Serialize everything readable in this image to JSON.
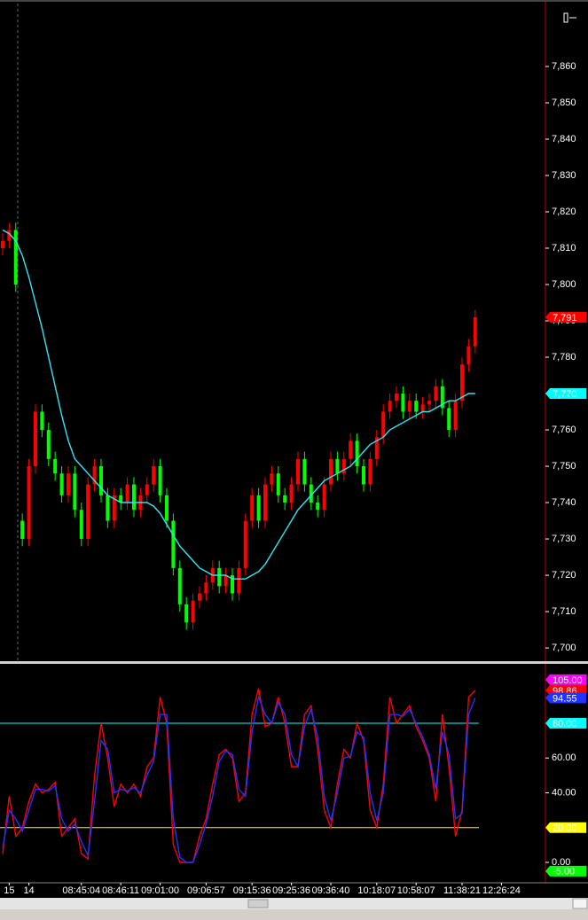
{
  "chart_data": [
    {
      "type": "candlestick",
      "xlim": [
        -0.4,
        82.7
      ],
      "ylim": [
        7696.6,
        7877.8
      ],
      "yticks": [
        {
          "value": 7700,
          "label": "7,700"
        },
        {
          "value": 7710,
          "label": "7,710"
        },
        {
          "value": 7720,
          "label": "7,720"
        },
        {
          "value": 7730,
          "label": "7,730"
        },
        {
          "value": 7740,
          "label": "7,740"
        },
        {
          "value": 7750,
          "label": "7,750"
        },
        {
          "value": 7760,
          "label": "7,760"
        },
        {
          "value": 7770,
          "label": "7,770"
        },
        {
          "value": 7780,
          "label": "7,780"
        },
        {
          "value": 7790,
          "label": "7,790"
        },
        {
          "value": 7800,
          "label": "7,800"
        },
        {
          "value": 7810,
          "label": "7,810"
        },
        {
          "value": 7820,
          "label": "7,820"
        },
        {
          "value": 7830,
          "label": "7,830"
        },
        {
          "value": 7840,
          "label": "7,840"
        },
        {
          "value": 7850,
          "label": "7,850"
        },
        {
          "value": 7860,
          "label": "7,860"
        }
      ],
      "up_color": "#ff0000",
      "down_color": "#00ff00",
      "open": [
        7810,
        7812,
        7815,
        7735,
        7730,
        7750,
        7765,
        7760,
        7752,
        7748,
        7742,
        7748,
        7738,
        7730,
        7745,
        7750,
        7742,
        7735,
        7742,
        7740,
        7745,
        7738,
        7742,
        7745,
        7750,
        7742,
        7735,
        7722,
        7712,
        7707,
        7713,
        7715,
        7718,
        7722,
        7717,
        7720,
        7715,
        7722,
        7735,
        7742,
        7735,
        7745,
        7748,
        7742,
        7740,
        7745,
        7752,
        7745,
        7740,
        7738,
        7745,
        7752,
        7748,
        7752,
        7757,
        7750,
        7745,
        7752,
        7758,
        7765,
        7768,
        7770,
        7765,
        7768,
        7765,
        7767,
        7768,
        7772,
        7766,
        7760,
        7768,
        7778,
        7783
      ],
      "high": [
        7814,
        7817,
        7817,
        7737,
        7752,
        7767,
        7767,
        7762,
        7754,
        7750,
        7750,
        7750,
        7740,
        7747,
        7752,
        7752,
        7744,
        7744,
        7744,
        7747,
        7747,
        7744,
        7747,
        7752,
        7752,
        7744,
        7737,
        7724,
        7714,
        7715,
        7717,
        7720,
        7724,
        7724,
        7722,
        7722,
        7724,
        7737,
        7744,
        7744,
        7747,
        7750,
        7750,
        7744,
        7747,
        7754,
        7754,
        7747,
        7742,
        7747,
        7754,
        7754,
        7754,
        7759,
        7759,
        7752,
        7754,
        7760,
        7767,
        7770,
        7772,
        7772,
        7770,
        7770,
        7769,
        7770,
        7774,
        7774,
        7768,
        7770,
        7780,
        7785,
        7793
      ],
      "low": [
        7808,
        7810,
        7798,
        7728,
        7728,
        7748,
        7758,
        7750,
        7746,
        7740,
        7740,
        7736,
        7728,
        7728,
        7743,
        7740,
        7733,
        7733,
        7738,
        7738,
        7736,
        7736,
        7740,
        7743,
        7740,
        7733,
        7720,
        7710,
        7705,
        7705,
        7711,
        7713,
        7716,
        7715,
        7715,
        7713,
        7713,
        7720,
        7733,
        7733,
        7733,
        7743,
        7740,
        7738,
        7738,
        7743,
        7743,
        7738,
        7736,
        7736,
        7743,
        7746,
        7746,
        7750,
        7748,
        7743,
        7743,
        7750,
        7756,
        7763,
        7766,
        7763,
        7763,
        7763,
        7763,
        7765,
        7766,
        7764,
        7758,
        7758,
        7766,
        7776,
        7781
      ],
      "close": [
        7812,
        7815,
        7800,
        7730,
        7750,
        7765,
        7760,
        7752,
        7748,
        7742,
        7748,
        7738,
        7730,
        7745,
        7750,
        7742,
        7735,
        7742,
        7740,
        7745,
        7738,
        7742,
        7745,
        7750,
        7742,
        7735,
        7722,
        7712,
        7707,
        7713,
        7715,
        7718,
        7722,
        7717,
        7720,
        7715,
        7722,
        7735,
        7742,
        7735,
        7745,
        7748,
        7742,
        7740,
        7745,
        7752,
        7745,
        7740,
        7738,
        7745,
        7752,
        7748,
        7752,
        7757,
        7750,
        7745,
        7752,
        7758,
        7765,
        7768,
        7770,
        7765,
        7768,
        7765,
        7767,
        7768,
        7772,
        7766,
        7760,
        7768,
        7778,
        7783,
        7791
      ],
      "series": [
        {
          "color": "#33e6f0",
          "values": [
            7815,
            7814,
            7812,
            7808,
            7802,
            7795,
            7788,
            7780,
            7772,
            7764,
            7757,
            7752,
            7750,
            7748,
            7746,
            7744,
            7742,
            7741,
            7740,
            7740,
            7740,
            7740,
            7740,
            7739,
            7737,
            7734,
            7731,
            7728,
            7726,
            7724,
            7722,
            7721,
            7720,
            7720,
            7720,
            7719,
            7719,
            7719,
            7720,
            7721,
            7723,
            7726,
            7729,
            7732,
            7735,
            7738,
            7740,
            7742,
            7744,
            7746,
            7747,
            7748,
            7749,
            7750,
            7752,
            7754,
            7756,
            7757,
            7758,
            7760,
            7761,
            7762,
            7763,
            7764,
            7765,
            7765,
            7766,
            7767,
            7768,
            7768,
            7769,
            7770,
            7770
          ]
        }
      ],
      "markers": [
        {
          "value": 7791,
          "label": "7,791",
          "color": "#ff0000"
        },
        {
          "value": 7770,
          "label": "7,770",
          "color": "#00ffff"
        }
      ]
    },
    {
      "type": "line",
      "xlim": [
        -0.4,
        82.7
      ],
      "ylim": [
        -11.2,
        113.6
      ],
      "yticks": [
        {
          "value": 0,
          "label": "0.00"
        },
        {
          "value": 40,
          "label": "40.00"
        },
        {
          "value": 60,
          "label": "60.00"
        }
      ],
      "levels": [
        {
          "value": 80,
          "label": "80.00",
          "color": "#00ffff"
        },
        {
          "value": 20,
          "label": "20.00",
          "color": "#ffff00"
        }
      ],
      "markers": [
        {
          "value": 105,
          "label": "105.00",
          "color": "#ff00ff"
        },
        {
          "value": -5,
          "label": "-5.00",
          "color": "#00ff00"
        }
      ],
      "series": [
        {
          "color": "#ff0000",
          "values": [
            5,
            38,
            15,
            20,
            35,
            45,
            40,
            42,
            46,
            15,
            20,
            25,
            5,
            2,
            50,
            80,
            60,
            32,
            45,
            40,
            45,
            38,
            55,
            60,
            95,
            80,
            10,
            0,
            0,
            0,
            15,
            25,
            45,
            62,
            65,
            60,
            35,
            40,
            85,
            100,
            78,
            80,
            95,
            80,
            55,
            55,
            85,
            90,
            65,
            30,
            20,
            45,
            65,
            60,
            80,
            70,
            30,
            20,
            45,
            95,
            80,
            85,
            90,
            78,
            70,
            60,
            35,
            85,
            55,
            15,
            30,
            95,
            98.86
          ]
        },
        {
          "color": "#2233ff",
          "values": [
            8,
            30,
            25,
            18,
            30,
            42,
            42,
            41,
            44,
            25,
            18,
            22,
            12,
            4,
            35,
            70,
            65,
            40,
            42,
            41,
            43,
            40,
            50,
            58,
            85,
            85,
            25,
            3,
            0,
            0,
            10,
            22,
            38,
            58,
            64,
            62,
            42,
            38,
            75,
            95,
            85,
            80,
            92,
            85,
            62,
            55,
            78,
            88,
            72,
            38,
            24,
            40,
            60,
            61,
            75,
            72,
            40,
            24,
            40,
            85,
            85,
            84,
            88,
            80,
            72,
            62,
            42,
            75,
            62,
            25,
            28,
            85,
            94.55
          ]
        }
      ],
      "xticks": [
        {
          "value": 1,
          "label": "15"
        },
        {
          "value": 4,
          "label": "14"
        },
        {
          "value": 12,
          "label": "08:45:04"
        },
        {
          "value": 18,
          "label": "08:46:11"
        },
        {
          "value": 24,
          "label": "09:01:00"
        },
        {
          "value": 31,
          "label": "09:06:57"
        },
        {
          "value": 38,
          "label": "09:15:36"
        },
        {
          "value": 44,
          "label": "09:25:36"
        },
        {
          "value": 50,
          "label": "09:36:40"
        },
        {
          "value": 57,
          "label": "10:18:07"
        },
        {
          "value": 63,
          "label": "10:58:07"
        },
        {
          "value": 70,
          "label": "11:38:21"
        },
        {
          "value": 76,
          "label": "12:26:24"
        }
      ]
    }
  ]
}
